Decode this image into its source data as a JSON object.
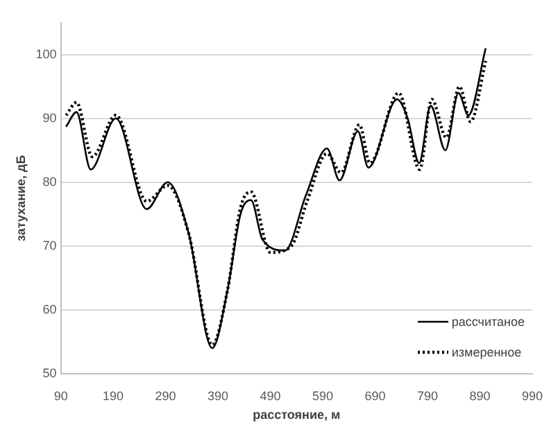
{
  "chart_data": {
    "type": "line",
    "xlabel": "расстояние, м",
    "ylabel": "затухание, дБ",
    "xlim": [
      90,
      990
    ],
    "xticks": [
      90,
      190,
      290,
      390,
      490,
      590,
      690,
      790,
      890,
      990
    ],
    "ylim": [
      50,
      105
    ],
    "yticks": [
      50,
      60,
      70,
      80,
      90,
      100
    ],
    "grid": "y",
    "legend": "bottom right",
    "marker": "none",
    "series": [
      {
        "name": "рассчитаное",
        "color": "#000000",
        "line_style": "solid",
        "x": [
          100,
          120,
          147,
          195,
          254,
          294,
          334,
          379,
          408,
          433,
          453,
          475,
          518,
          558,
          598,
          622,
          657,
          677,
          732,
          752,
          774,
          796,
          824,
          849,
          868,
          901
        ],
        "values": [
          88.7,
          91,
          82,
          90,
          75.8,
          80,
          72,
          54,
          63,
          75,
          77.2,
          71,
          69.3,
          78,
          85.3,
          80.3,
          88,
          82.3,
          93,
          90,
          83,
          92,
          85,
          94,
          90.5,
          101
        ]
      },
      {
        "name": "измеренное",
        "color": "#000000",
        "line_style": "dotted",
        "x": [
          100,
          120,
          150,
          195,
          254,
          294,
          334,
          379,
          408,
          433,
          453,
          490,
          530,
          560,
          598,
          625,
          660,
          680,
          735,
          775,
          798,
          826,
          851,
          872,
          901
        ],
        "values": [
          90.5,
          92.5,
          84,
          90.5,
          77,
          79.5,
          72,
          54.5,
          63,
          76,
          78.5,
          69,
          70,
          77,
          84.5,
          81.5,
          89,
          83,
          94,
          82,
          93,
          87,
          95,
          89.5,
          99
        ]
      }
    ]
  }
}
